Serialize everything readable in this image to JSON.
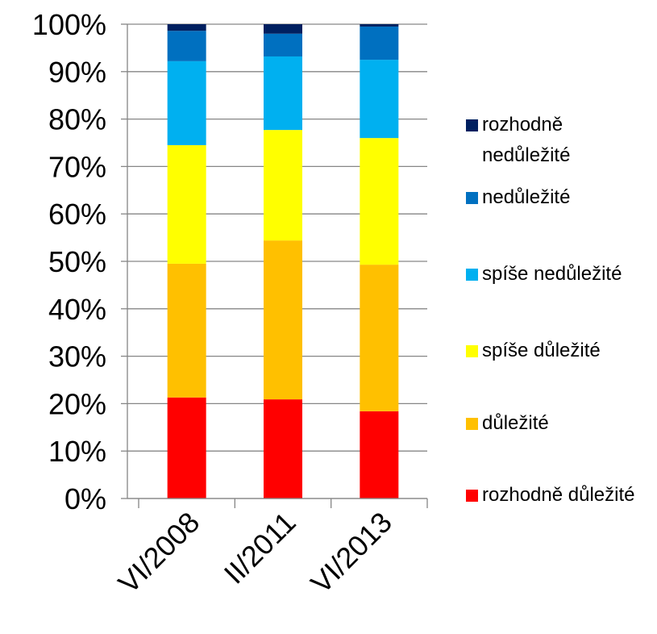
{
  "chart_data": {
    "type": "stacked_bar",
    "categories": [
      "VI/2008",
      "II/2011",
      "VI/2013"
    ],
    "series": [
      {
        "name": "rozhodně důležité",
        "color": "#ff0000",
        "values": [
          21.3,
          20.9,
          18.4
        ]
      },
      {
        "name": "důležité",
        "color": "#ffc000",
        "values": [
          28.2,
          33.5,
          30.9
        ]
      },
      {
        "name": "spíše důležité",
        "color": "#ffff00",
        "values": [
          25.0,
          23.3,
          26.7
        ]
      },
      {
        "name": "spíše nedůležité",
        "color": "#00b0f0",
        "values": [
          17.7,
          15.5,
          16.5
        ]
      },
      {
        "name": "nedůležité",
        "color": "#0070c0",
        "values": [
          6.4,
          4.8,
          7.0
        ]
      },
      {
        "name": "rozhodně nedůležité",
        "color": "#002060",
        "values": [
          1.4,
          2.0,
          0.5
        ]
      }
    ],
    "ylim": [
      0,
      100
    ],
    "yticks": [
      {
        "value": 0,
        "label": "0%"
      },
      {
        "value": 10,
        "label": "10%"
      },
      {
        "value": 20,
        "label": "20%"
      },
      {
        "value": 30,
        "label": "30%"
      },
      {
        "value": 40,
        "label": "40%"
      },
      {
        "value": 50,
        "label": "50%"
      },
      {
        "value": 60,
        "label": "60%"
      },
      {
        "value": 70,
        "label": "70%"
      },
      {
        "value": 80,
        "label": "80%"
      },
      {
        "value": 90,
        "label": "90%"
      },
      {
        "value": 100,
        "label": "100%"
      }
    ],
    "grid": true,
    "legend": "right"
  }
}
